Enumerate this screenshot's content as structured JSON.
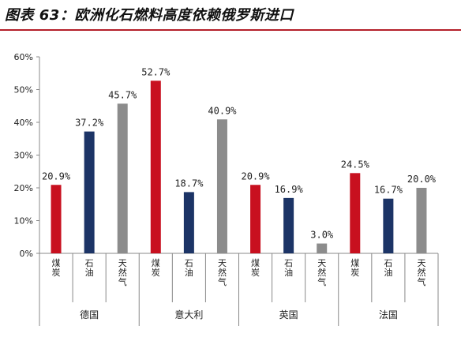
{
  "page": {
    "title": "图表 63：欧洲化石燃料高度依赖俄罗斯进口"
  },
  "colors": {
    "coal": "#c8101f",
    "oil": "#1c3466",
    "gas": "#8c8c8c",
    "accent": "#b4202a"
  },
  "chart_data": {
    "type": "bar",
    "title": "",
    "xlabel": "",
    "ylabel": "",
    "ylim": [
      0,
      60
    ],
    "ytick_labels": [
      "0%",
      "10%",
      "20%",
      "30%",
      "40%",
      "50%",
      "60%"
    ],
    "grid": false,
    "legend": "none",
    "groups": [
      {
        "name": "德国",
        "bars": [
          {
            "label": "煤炭",
            "value": 20.9,
            "text": "20.9%",
            "color": "coal"
          },
          {
            "label": "石油",
            "value": 37.2,
            "text": "37.2%",
            "color": "oil"
          },
          {
            "label": "天然气",
            "value": 45.7,
            "text": "45.7%",
            "color": "gas"
          }
        ]
      },
      {
        "name": "意大利",
        "bars": [
          {
            "label": "煤炭",
            "value": 52.7,
            "text": "52.7%",
            "color": "coal"
          },
          {
            "label": "石油",
            "value": 18.7,
            "text": "18.7%",
            "color": "oil"
          },
          {
            "label": "天然气",
            "value": 40.9,
            "text": "40.9%",
            "color": "gas"
          }
        ]
      },
      {
        "name": "英国",
        "bars": [
          {
            "label": "煤炭",
            "value": 20.9,
            "text": "20.9%",
            "color": "coal"
          },
          {
            "label": "石油",
            "value": 16.9,
            "text": "16.9%",
            "color": "oil"
          },
          {
            "label": "天然气",
            "value": 3.0,
            "text": "3.0%",
            "color": "gas"
          }
        ]
      },
      {
        "name": "法国",
        "bars": [
          {
            "label": "煤炭",
            "value": 24.5,
            "text": "24.5%",
            "color": "coal"
          },
          {
            "label": "石油",
            "value": 16.7,
            "text": "16.7%",
            "color": "oil"
          },
          {
            "label": "天然气",
            "value": 20.0,
            "text": "20.0%",
            "color": "gas"
          }
        ]
      }
    ]
  }
}
